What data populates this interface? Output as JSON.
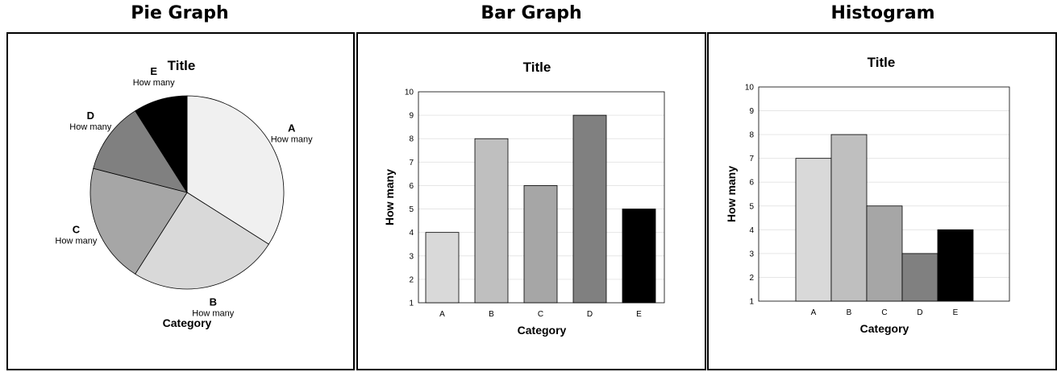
{
  "headings": {
    "pie": "Pie Graph",
    "bar": "Bar Graph",
    "histogram": "Histogram"
  },
  "chart_data": [
    {
      "type": "pie",
      "title": "Title",
      "xlabel": "Category",
      "slice_label": "How many",
      "slices": [
        {
          "name": "A",
          "value": 34,
          "color": "#f0f0f0"
        },
        {
          "name": "B",
          "value": 25,
          "color": "#d9d9d9"
        },
        {
          "name": "C",
          "value": 20,
          "color": "#a6a6a6"
        },
        {
          "name": "D",
          "value": 12,
          "color": "#808080"
        },
        {
          "name": "E",
          "value": 9,
          "color": "#000000"
        }
      ]
    },
    {
      "type": "bar",
      "title": "Title",
      "xlabel": "Category",
      "ylabel": "How many",
      "ylim": [
        1,
        10
      ],
      "grid": true,
      "categories": [
        "A",
        "B",
        "C",
        "D",
        "E"
      ],
      "values": [
        4,
        8,
        6,
        9,
        5
      ],
      "colors": [
        "#d9d9d9",
        "#bfbfbf",
        "#a6a6a6",
        "#808080",
        "#000000"
      ]
    },
    {
      "type": "bar",
      "title": "Title",
      "xlabel": "Category",
      "ylabel": "How many",
      "ylim": [
        1,
        10
      ],
      "grid": true,
      "categories": [
        "A",
        "B",
        "C",
        "D",
        "E"
      ],
      "values": [
        7,
        8,
        5,
        3,
        4
      ],
      "colors": [
        "#d9d9d9",
        "#bfbfbf",
        "#a6a6a6",
        "#808080",
        "#000000"
      ]
    }
  ]
}
